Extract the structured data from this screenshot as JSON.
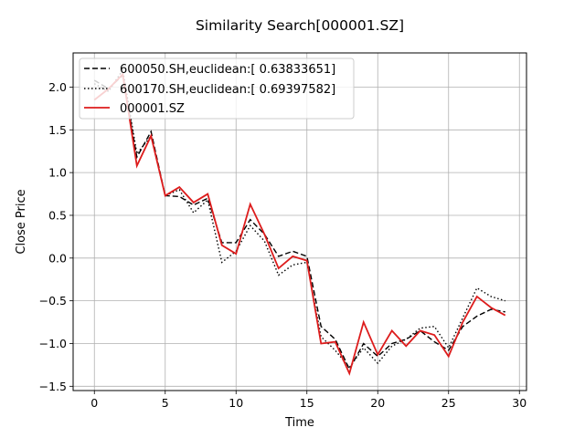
{
  "chart_data": {
    "type": "line",
    "title": "Similarity Search[000001.SZ]",
    "xlabel": "Time",
    "ylabel": "Close Price",
    "xlim": [
      -1.5,
      30.5
    ],
    "ylim": [
      -1.55,
      2.4
    ],
    "xticks": [
      0,
      5,
      10,
      15,
      20,
      25,
      30
    ],
    "yticks": [
      -1.5,
      -1.0,
      -0.5,
      0.0,
      0.5,
      1.0,
      1.5,
      2.0
    ],
    "xtick_labels": [
      "0",
      "5",
      "10",
      "15",
      "20",
      "25",
      "30"
    ],
    "ytick_labels": [
      "−1.5",
      "−1.0",
      "−0.5",
      "0.0",
      "0.5",
      "1.0",
      "1.5",
      "2.0"
    ],
    "grid": true,
    "legend_position": "upper-left",
    "x": [
      0,
      1,
      2,
      3,
      4,
      5,
      6,
      7,
      8,
      9,
      10,
      11,
      12,
      13,
      14,
      15,
      16,
      17,
      18,
      19,
      20,
      21,
      22,
      23,
      24,
      25,
      26,
      27,
      28,
      29
    ],
    "series": [
      {
        "name": "600050.SH,euclidean:[ 0.63833651]",
        "style": "dashed",
        "color": "#000000",
        "values": [
          2.08,
          1.98,
          2.14,
          1.18,
          1.48,
          0.73,
          0.72,
          0.62,
          0.7,
          0.18,
          0.18,
          0.45,
          0.28,
          0.02,
          0.08,
          0.02,
          -0.8,
          -0.95,
          -1.3,
          -1.0,
          -1.15,
          -1.0,
          -0.95,
          -0.85,
          -0.98,
          -1.08,
          -0.8,
          -0.68,
          -0.6,
          -0.63
        ]
      },
      {
        "name": "600170.SH,euclidean:[ 0.69397582]",
        "style": "dotted",
        "color": "#000000",
        "values": [
          2.04,
          1.95,
          2.2,
          1.22,
          1.43,
          0.73,
          0.8,
          0.53,
          0.68,
          -0.05,
          0.08,
          0.38,
          0.2,
          -0.2,
          -0.08,
          -0.05,
          -0.92,
          -1.08,
          -1.28,
          -1.05,
          -1.23,
          -1.03,
          -0.95,
          -0.82,
          -0.8,
          -1.05,
          -0.7,
          -0.35,
          -0.45,
          -0.5
        ]
      },
      {
        "name": "000001.SZ",
        "style": "solid",
        "color": "#dd1c1c",
        "values": [
          1.85,
          1.98,
          2.15,
          1.08,
          1.43,
          0.73,
          0.83,
          0.65,
          0.75,
          0.15,
          0.05,
          0.63,
          0.28,
          -0.12,
          0.02,
          -0.03,
          -1.0,
          -0.98,
          -1.35,
          -0.75,
          -1.13,
          -0.85,
          -1.03,
          -0.85,
          -0.9,
          -1.15,
          -0.75,
          -0.45,
          -0.58,
          -0.67
        ]
      }
    ]
  }
}
